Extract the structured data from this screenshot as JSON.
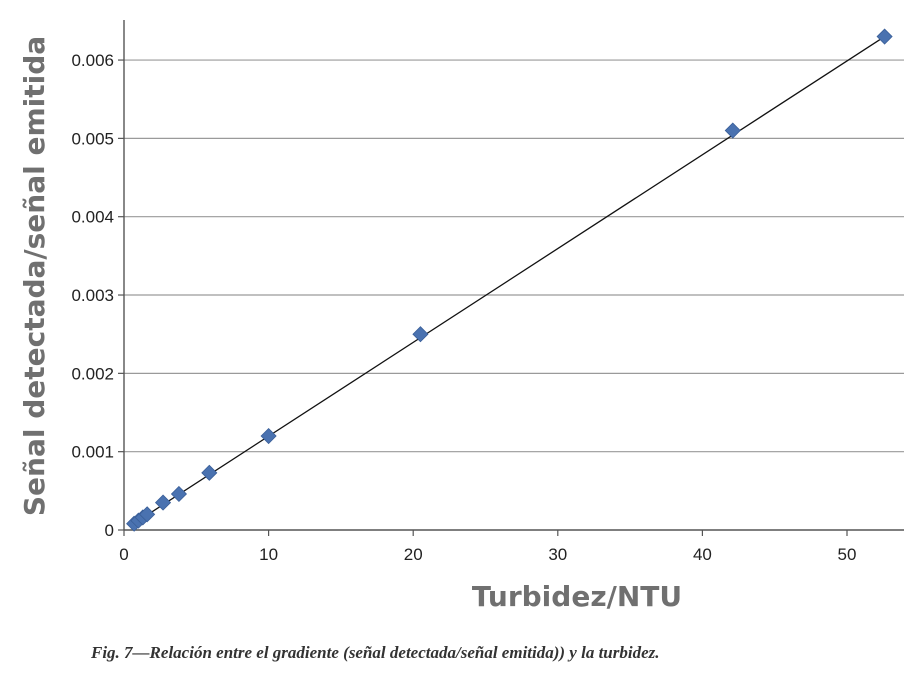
{
  "chart_data": {
    "type": "scatter",
    "xlabel": "Turbidez/NTU",
    "ylabel": "Señal detectada/señal emitida",
    "xlim": [
      0,
      53
    ],
    "ylim": [
      0,
      0.0065
    ],
    "x_ticks": [
      0,
      10,
      20,
      30,
      40,
      50
    ],
    "x_tick_labels": [
      "0",
      "10",
      "20",
      "30",
      "40",
      "50"
    ],
    "y_ticks": [
      0,
      0.001,
      0.002,
      0.003,
      0.004,
      0.005,
      0.006
    ],
    "y_tick_labels": [
      "0",
      "0.001",
      "0.002",
      "0.003",
      "0.004",
      "0.005",
      "0.006"
    ],
    "grid": "horizontal",
    "marker": "diamond",
    "marker_color": "#4a72b0",
    "line_color": "#111111",
    "series": [
      {
        "points": [
          {
            "x": 0.7,
            "y": 8e-05
          },
          {
            "x": 1.0,
            "y": 0.00012
          },
          {
            "x": 1.3,
            "y": 0.00016
          },
          {
            "x": 1.6,
            "y": 0.0002
          },
          {
            "x": 2.7,
            "y": 0.00035
          },
          {
            "x": 3.8,
            "y": 0.00046
          },
          {
            "x": 5.9,
            "y": 0.00073
          },
          {
            "x": 10.0,
            "y": 0.0012
          },
          {
            "x": 20.5,
            "y": 0.0025
          },
          {
            "x": 42.1,
            "y": 0.0051
          },
          {
            "x": 52.6,
            "y": 0.0063
          }
        ]
      }
    ],
    "trendline": {
      "x": [
        0.5,
        52.6
      ],
      "y": [
        6e-05,
        0.0063
      ]
    }
  },
  "caption": "Fig. 7—Relación entre el gradiente (señal detectada/señal emitida)) y la turbidez."
}
